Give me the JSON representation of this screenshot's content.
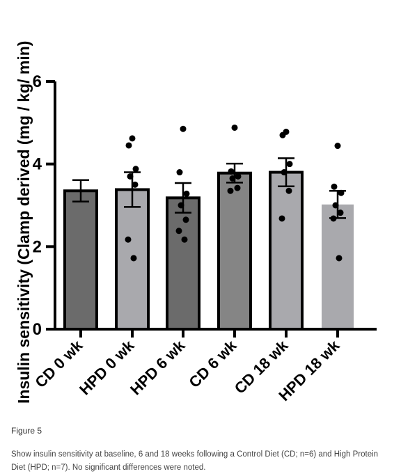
{
  "chart_data": {
    "type": "bar",
    "ylabel": "Insulin sensitivity  (Clamp derived (mg / kg/ min)",
    "xlabel": "",
    "ylim": [
      0,
      6
    ],
    "yticks": [
      0,
      2,
      4,
      6
    ],
    "categories": [
      "CD 0 wk",
      "HPD 0 wk",
      "HPD 6 wk",
      "CD 6 wk",
      "CD 18 wk",
      "HPD 18 wk"
    ],
    "values": [
      3.35,
      3.38,
      3.18,
      3.78,
      3.8,
      3.02
    ],
    "sem": [
      0.26,
      0.42,
      0.36,
      0.23,
      0.34,
      0.33
    ],
    "bar_colors": [
      "#6b6b6b",
      "#a9a9ad",
      "#6b6b6b",
      "#858585",
      "#a9a9ad",
      "#a9a9ad"
    ],
    "bar_outlined": [
      true,
      true,
      true,
      true,
      true,
      false
    ],
    "points": [
      [],
      [
        4.62,
        4.45,
        3.88,
        3.7,
        3.5,
        2.17,
        1.72
      ],
      [
        4.85,
        3.8,
        3.28,
        3.0,
        2.65,
        2.38,
        2.17
      ],
      [
        4.88,
        3.82,
        3.7,
        3.65,
        3.42,
        3.35
      ],
      [
        4.78,
        4.7,
        4.0,
        3.8,
        3.35,
        2.68
      ],
      [
        4.44,
        3.45,
        3.3,
        3.0,
        2.82,
        2.68,
        1.72
      ]
    ],
    "grid": false,
    "legend": "none"
  },
  "figure": {
    "label": "Figure 5",
    "caption": "Show insulin sensitivity at baseline, 6 and 18 weeks following a Control Diet (CD; n=6) and High Protein Diet (HPD; n=7). No significant differences were noted."
  }
}
